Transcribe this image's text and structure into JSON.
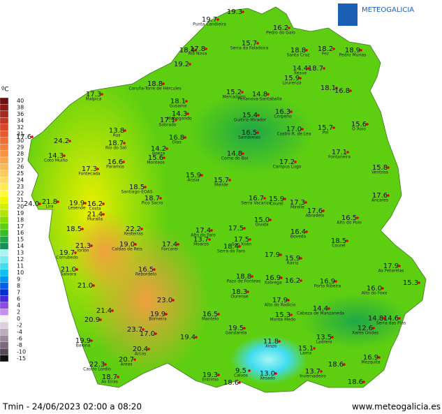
{
  "header": {
    "brand": "METEOGALICIA",
    "unit": "ºC"
  },
  "legend": [
    {
      "value": 40,
      "color": "#6a1010"
    },
    {
      "value": 38,
      "color": "#8a1a16"
    },
    {
      "value": 36,
      "color": "#a52a1e"
    },
    {
      "value": 34,
      "color": "#c03726"
    },
    {
      "value": 32,
      "color": "#d9462a"
    },
    {
      "value": 31,
      "color": "#e85a2c"
    },
    {
      "value": 30,
      "color": "#f06e34"
    },
    {
      "value": 29,
      "color": "#f4823c"
    },
    {
      "value": 28,
      "color": "#f69444"
    },
    {
      "value": 27,
      "color": "#f8a64c"
    },
    {
      "value": 26,
      "color": "#fab856"
    },
    {
      "value": 25,
      "color": "#fcca5e"
    },
    {
      "value": 24,
      "color": "#fddc5e"
    },
    {
      "value": 23,
      "color": "#ffec50"
    },
    {
      "value": 22,
      "color": "#fff83a"
    },
    {
      "value": 21,
      "color": "#f0f800"
    },
    {
      "value": 20,
      "color": "#d2f000"
    },
    {
      "value": 19,
      "color": "#b0e600"
    },
    {
      "value": 18,
      "color": "#8adc00"
    },
    {
      "value": 17,
      "color": "#5ecf10"
    },
    {
      "value": 16,
      "color": "#34c024"
    },
    {
      "value": 15,
      "color": "#1ea848"
    },
    {
      "value": 14,
      "color": "#14905c"
    },
    {
      "value": 13,
      "color": "#a8f4f4"
    },
    {
      "value": 12,
      "color": "#78eef2"
    },
    {
      "value": 11,
      "color": "#40dcf0"
    },
    {
      "value": 10,
      "color": "#10c0f0"
    },
    {
      "value": 9,
      "color": "#0096f0"
    },
    {
      "value": 8,
      "color": "#0060e8"
    },
    {
      "value": 7,
      "color": "#0030d0"
    },
    {
      "value": 6,
      "color": "#4a28d8"
    },
    {
      "value": 4,
      "color": "#8a4ae4"
    },
    {
      "value": 2,
      "color": "#c490ee"
    },
    {
      "value": 0,
      "color": "#f4f4f4"
    },
    {
      "value": -2,
      "color": "#dcd0dc"
    },
    {
      "value": -4,
      "color": "#bcacbc"
    },
    {
      "value": -6,
      "color": "#9c8a9c"
    },
    {
      "value": -8,
      "color": "#7a6a7a"
    },
    {
      "value": -10,
      "color": "#584858"
    },
    {
      "value": -15,
      "color": "#101010"
    }
  ],
  "stations": [
    {
      "value": "19.7",
      "name": "Punta Candieira"
    },
    {
      "value": "19.3",
      "name": ""
    },
    {
      "value": "16.2",
      "name": "Pedro do Galo"
    },
    {
      "value": "15.7",
      "name": "Serra da Faladoira"
    },
    {
      "value": "18.4",
      "name": ""
    },
    {
      "value": "17.8",
      "name": "Río Nova"
    },
    {
      "value": "18.8",
      "name": "Santa Cruz"
    },
    {
      "value": "18.2",
      "name": "Fez"
    },
    {
      "value": "18.9",
      "name": "Pedro Murias"
    },
    {
      "value": "19.2",
      "name": ""
    },
    {
      "value": "14.4",
      "name": "Xeave"
    },
    {
      "value": "18.7",
      "name": ""
    },
    {
      "value": "15.9",
      "name": "Lourenzá"
    },
    {
      "value": "18.8",
      "name": "Coruña-Torre de Hércules"
    },
    {
      "value": "17.3",
      "name": "Malpica"
    },
    {
      "value": "15.2",
      "name": "Mercadoiro"
    },
    {
      "value": "14.8",
      "name": "Penanova-Santaballa"
    },
    {
      "value": "18.1",
      "name": "Gusamo"
    },
    {
      "value": "18.1",
      "name": ""
    },
    {
      "value": "16.8",
      "name": ""
    },
    {
      "value": "14.3",
      "name": "Mabegondo"
    },
    {
      "value": "17.1",
      "name": "Sobrado"
    },
    {
      "value": "15.4",
      "name": "Guitiriz-Mirador"
    },
    {
      "value": "16.3",
      "name": "Corpeño"
    },
    {
      "value": "13.8",
      "name": "Rus"
    },
    {
      "value": "16.5",
      "name": "Sambreixo"
    },
    {
      "value": "17.0",
      "name": "Castro R. de Lea"
    },
    {
      "value": "15.7",
      "name": "Pol"
    },
    {
      "value": "15.6",
      "name": "O Xoio"
    },
    {
      "value": "17.6",
      "name": ""
    },
    {
      "value": "24.2",
      "name": ""
    },
    {
      "value": "16.8",
      "name": "Olas"
    },
    {
      "value": "18.7",
      "name": "Río do Sol"
    },
    {
      "value": "14.2",
      "name": "Boeza"
    },
    {
      "value": "15.6",
      "name": "Monteos"
    },
    {
      "value": "14.3",
      "name": "Coto Muíño"
    },
    {
      "value": "14.8",
      "name": "Corno do Boi"
    },
    {
      "value": "17.1",
      "name": "Fontaneira"
    },
    {
      "value": "16.6",
      "name": "Paramos"
    },
    {
      "value": "17.3",
      "name": "Fontecada"
    },
    {
      "value": "17.2",
      "name": "Campus Lugo"
    },
    {
      "value": "15.8",
      "name": "Ventosa"
    },
    {
      "value": "15.9",
      "name": "Arzúa"
    },
    {
      "value": "15.7",
      "name": "Melide"
    },
    {
      "value": "18.5",
      "name": "Santiago-EOAS"
    },
    {
      "value": "17.6",
      "name": "Ancares"
    },
    {
      "value": "24.0",
      "name": ""
    },
    {
      "value": "21.8",
      "name": "Lira"
    },
    {
      "value": "19.9",
      "name": "Lesende"
    },
    {
      "value": "16.2",
      "name": "Costa"
    },
    {
      "value": "18.7",
      "name": "Pico Sacro"
    },
    {
      "value": "16.7",
      "name": "Serra Vacariza"
    },
    {
      "value": "15.9",
      "name": "Courel"
    },
    {
      "value": "17.3",
      "name": "Mirelle"
    },
    {
      "value": "17.6",
      "name": "Abradelo"
    },
    {
      "value": "16.5",
      "name": "Alto do Poio"
    },
    {
      "value": "21.4",
      "name": "Muralla"
    },
    {
      "value": "15.0",
      "name": "Oivida"
    },
    {
      "value": "18.5",
      "name": ""
    },
    {
      "value": "22.2",
      "name": "Xesteiras"
    },
    {
      "value": "17.4",
      "name": "Alto do Faro"
    },
    {
      "value": "17.5",
      "name": ""
    },
    {
      "value": "16.4",
      "name": "Boveda"
    },
    {
      "value": "13.7",
      "name": "Moarzo"
    },
    {
      "value": "17.5",
      "name": "San Xoán"
    },
    {
      "value": "18.5",
      "name": "Courel"
    },
    {
      "value": "21.3",
      "name": "Iorlón"
    },
    {
      "value": "19.0",
      "name": "Caldas de Reis"
    },
    {
      "value": "17.4",
      "name": "Forcarei"
    },
    {
      "value": "18.4",
      "name": "Serra do Faro"
    },
    {
      "value": "19.7",
      "name": "Corrubedo"
    },
    {
      "value": "17.9",
      "name": ""
    },
    {
      "value": "15.9",
      "name": "Rairiz"
    },
    {
      "value": "21.0",
      "name": "Salvora"
    },
    {
      "value": "16.5",
      "name": "Rebordelo"
    },
    {
      "value": "17.9",
      "name": "As Petarelas"
    },
    {
      "value": "18.8",
      "name": "Pazo de Fonteas"
    },
    {
      "value": "16.9",
      "name": "Xabrega"
    },
    {
      "value": "16.2",
      "name": ""
    },
    {
      "value": "16.9",
      "name": "Porto Ribeira"
    },
    {
      "value": "15.3",
      "name": ""
    },
    {
      "value": "21.0",
      "name": ""
    },
    {
      "value": "18.3",
      "name": "Ourense"
    },
    {
      "value": "16.0",
      "name": "Alto do Foxo"
    },
    {
      "value": "21.4",
      "name": ""
    },
    {
      "value": "23.0",
      "name": ""
    },
    {
      "value": "17.9",
      "name": "Alto do Rodicio"
    },
    {
      "value": "14.4",
      "name": "Cabeza de Manzaneda"
    },
    {
      "value": "16.5",
      "name": "Mantelo"
    },
    {
      "value": "19.9",
      "name": "Borneira"
    },
    {
      "value": "15.3",
      "name": "Monte Medo"
    },
    {
      "value": "14.8",
      "name": ""
    },
    {
      "value": "14.6",
      "name": "Serra das Pías"
    },
    {
      "value": "20.9",
      "name": ""
    },
    {
      "value": "19.5",
      "name": "Gandarela"
    },
    {
      "value": "12.6",
      "name": "Xares Ondas"
    },
    {
      "value": "23.7",
      "name": ""
    },
    {
      "value": "17.0",
      "name": ""
    },
    {
      "value": "19.4",
      "name": ""
    },
    {
      "value": "13.5",
      "name": "Ladrero"
    },
    {
      "value": "19.9",
      "name": "Baiona"
    },
    {
      "value": "11.8",
      "name": "Xinzo"
    },
    {
      "value": "20.4",
      "name": "Arcos"
    },
    {
      "value": "15.1",
      "name": "Lama"
    },
    {
      "value": "20.7",
      "name": "Areas"
    },
    {
      "value": "16.9",
      "name": "Mezquita"
    },
    {
      "value": "22.3",
      "name": "Castro Lordío"
    },
    {
      "value": "18.6",
      "name": ""
    },
    {
      "value": "9.5",
      "name": "Calvos"
    },
    {
      "value": "13.0",
      "name": "Xesado"
    },
    {
      "value": "13.7",
      "name": "Invernadeiro"
    },
    {
      "value": "18.7",
      "name": "As Eiras"
    },
    {
      "value": "19.3",
      "name": "Entrimo"
    },
    {
      "value": "18.6",
      "name": ""
    },
    {
      "value": "18.6",
      "name": ""
    }
  ],
  "footer": {
    "caption": "Tmin - 24/06/2023 02:00 a 08:20",
    "url": "www.meteogalicia.es"
  }
}
